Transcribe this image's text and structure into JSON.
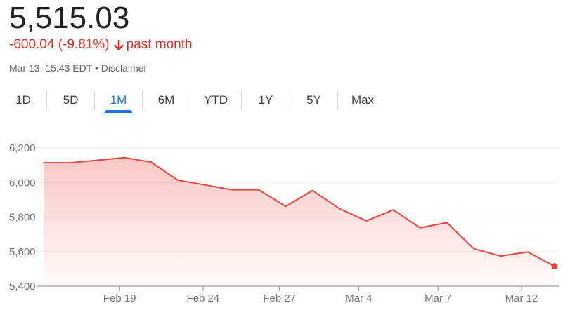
{
  "quote": {
    "price": "5,515.03",
    "change": "-600.04 (-9.81%)",
    "period": "past month",
    "timestamp": "Mar 13, 15:43 EDT",
    "separator": "•",
    "disclaimer": "Disclaimer"
  },
  "tabs": [
    {
      "label": "1D",
      "active": false
    },
    {
      "label": "5D",
      "active": false
    },
    {
      "label": "1M",
      "active": true
    },
    {
      "label": "6M",
      "active": false
    },
    {
      "label": "YTD",
      "active": false
    },
    {
      "label": "1Y",
      "active": false
    },
    {
      "label": "5Y",
      "active": false
    },
    {
      "label": "Max",
      "active": false
    }
  ],
  "colors": {
    "line": "#e8453c",
    "down": "#d93025",
    "active_tab": "#1a73e8"
  },
  "chart_data": {
    "type": "area",
    "x": [
      0,
      1,
      2,
      3,
      4,
      5,
      6,
      7,
      8,
      9,
      10,
      11,
      12,
      13,
      14,
      15,
      16,
      17,
      18,
      19
    ],
    "values": [
      6114,
      6114,
      6129,
      6144,
      6118,
      6013,
      5986,
      5958,
      5958,
      5862,
      5954,
      5849,
      5778,
      5842,
      5738,
      5768,
      5616,
      5574,
      5598,
      5515
    ],
    "ylim": [
      5400,
      6200
    ],
    "yticks": [
      {
        "value": 5400,
        "label": "5,400"
      },
      {
        "value": 5600,
        "label": "5,600"
      },
      {
        "value": 5800,
        "label": "5,800"
      },
      {
        "value": 6000,
        "label": "6,000"
      },
      {
        "value": 6200,
        "label": "6,200"
      }
    ],
    "xticks": [
      {
        "x": 2.83,
        "label": "Feb 19"
      },
      {
        "x": 5.93,
        "label": "Feb 24"
      },
      {
        "x": 8.77,
        "label": "Feb 27"
      },
      {
        "x": 11.72,
        "label": "Mar 4"
      },
      {
        "x": 14.67,
        "label": "Mar 7"
      },
      {
        "x": 17.77,
        "label": "Mar 12"
      }
    ],
    "grid": true,
    "legend": "none"
  }
}
